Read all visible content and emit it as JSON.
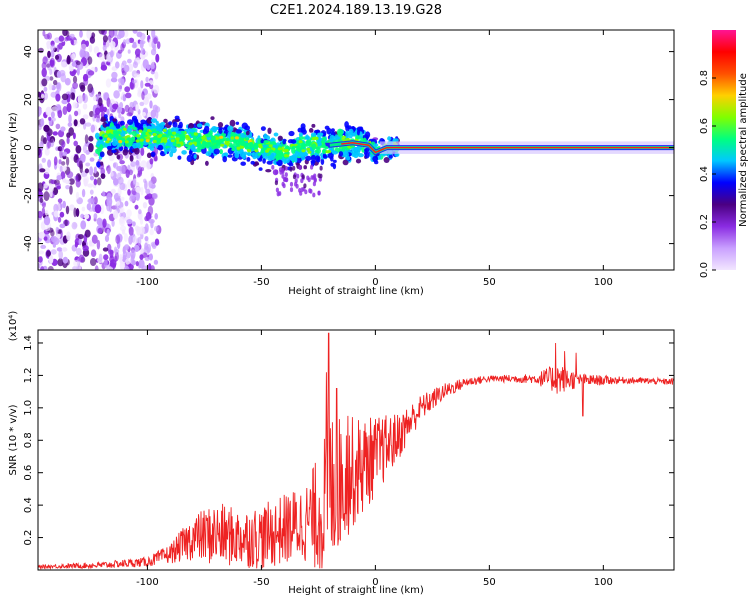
{
  "title": "C2E1.2024.189.13.19.G28",
  "chart_data": [
    {
      "type": "heatmap",
      "title": "",
      "xlabel": "Height of straight line (km)",
      "ylabel": "Frequency (Hz)",
      "xlim": [
        -148,
        131
      ],
      "ylim": [
        -51,
        49
      ],
      "xticks": [
        -100,
        -50,
        0,
        50,
        100
      ],
      "yticks": [
        -40,
        -20,
        0,
        20,
        40
      ],
      "xtick_labels": [
        "-100",
        "-50",
        "0",
        "50",
        "100"
      ],
      "ytick_labels": [
        "-40",
        "-20",
        "0",
        "20",
        "40"
      ],
      "ridge": [
        {
          "x": -120,
          "f": 5
        },
        {
          "x": -100,
          "f": 5
        },
        {
          "x": -80,
          "f": 3
        },
        {
          "x": -60,
          "f": 2
        },
        {
          "x": -40,
          "f": -2
        },
        {
          "x": -30,
          "f": 1
        },
        {
          "x": -20,
          "f": 1
        },
        {
          "x": -10,
          "f": 2
        },
        {
          "x": -3,
          "f": 1
        },
        {
          "x": 0,
          "f": -2
        },
        {
          "x": 5,
          "f": 0
        },
        {
          "x": 131,
          "f": 0
        }
      ],
      "colorbar": {
        "label": "Normalized spectral amplitude",
        "range": [
          0,
          1
        ],
        "ticks": [
          0.0,
          0.2,
          0.4,
          0.6,
          0.8
        ],
        "tick_labels": [
          "0.0",
          "0.2",
          "0.4",
          "0.6",
          "0.8"
        ],
        "colors": [
          "#f2e6ff",
          "#c9a0ff",
          "#8a2be2",
          "#4b0082",
          "#0000ff",
          "#00c8ff",
          "#00ff80",
          "#80ff00",
          "#ffd000",
          "#ff5000",
          "#ff0000",
          "#ff1493"
        ]
      }
    },
    {
      "type": "line",
      "title": "",
      "xlabel": "Height of straight line (km)",
      "ylabel": "SNR (10 * v/v)",
      "y_multiplier": "(x10⁴)",
      "xlim": [
        -148,
        131
      ],
      "ylim": [
        0,
        1.48
      ],
      "xticks": [
        -100,
        -50,
        0,
        50,
        100
      ],
      "yticks": [
        0.2,
        0.4,
        0.6,
        0.8,
        1.0,
        1.2,
        1.4
      ],
      "xtick_labels": [
        "-100",
        "-50",
        "0",
        "50",
        "100"
      ],
      "ytick_labels": [
        "0.2",
        "0.4",
        "0.6",
        "0.8",
        "1.0",
        "1.2",
        "1.4"
      ],
      "series": [
        {
          "name": "SNR",
          "color": "#ee2222",
          "points": [
            {
              "x": -148,
              "y": 0.02,
              "n": 0.01
            },
            {
              "x": -120,
              "y": 0.03,
              "n": 0.02
            },
            {
              "x": -100,
              "y": 0.05,
              "n": 0.03
            },
            {
              "x": -90,
              "y": 0.1,
              "n": 0.06
            },
            {
              "x": -80,
              "y": 0.2,
              "n": 0.14
            },
            {
              "x": -70,
              "y": 0.22,
              "n": 0.2
            },
            {
              "x": -60,
              "y": 0.2,
              "n": 0.18
            },
            {
              "x": -50,
              "y": 0.2,
              "n": 0.2
            },
            {
              "x": -40,
              "y": 0.25,
              "n": 0.22
            },
            {
              "x": -30,
              "y": 0.3,
              "n": 0.25
            },
            {
              "x": -24,
              "y": 0.35,
              "n": 0.4
            },
            {
              "x": -20,
              "y": 0.5,
              "n": 0.5
            },
            {
              "x": -15,
              "y": 0.55,
              "n": 0.4
            },
            {
              "x": -10,
              "y": 0.6,
              "n": 0.35
            },
            {
              "x": -5,
              "y": 0.65,
              "n": 0.3
            },
            {
              "x": 0,
              "y": 0.7,
              "n": 0.25
            },
            {
              "x": 10,
              "y": 0.82,
              "n": 0.15
            },
            {
              "x": 20,
              "y": 1.0,
              "n": 0.08
            },
            {
              "x": 30,
              "y": 1.1,
              "n": 0.05
            },
            {
              "x": 40,
              "y": 1.16,
              "n": 0.03
            },
            {
              "x": 50,
              "y": 1.18,
              "n": 0.02
            },
            {
              "x": 70,
              "y": 1.18,
              "n": 0.03
            },
            {
              "x": 80,
              "y": 1.18,
              "n": 0.1
            },
            {
              "x": 90,
              "y": 1.17,
              "n": 0.04
            },
            {
              "x": 110,
              "y": 1.17,
              "n": 0.02
            },
            {
              "x": 131,
              "y": 1.16,
              "n": 0.02
            }
          ],
          "spikes": [
            {
              "x": -20.5,
              "y": 1.46
            },
            {
              "x": -21.5,
              "y": 1.22
            },
            {
              "x": -17,
              "y": 1.12
            },
            {
              "x": -12,
              "y": 0.95
            },
            {
              "x": 79,
              "y": 1.4
            },
            {
              "x": 83,
              "y": 1.35
            },
            {
              "x": 88,
              "y": 1.34
            },
            {
              "x": 91,
              "y": 0.95
            }
          ]
        }
      ]
    }
  ]
}
